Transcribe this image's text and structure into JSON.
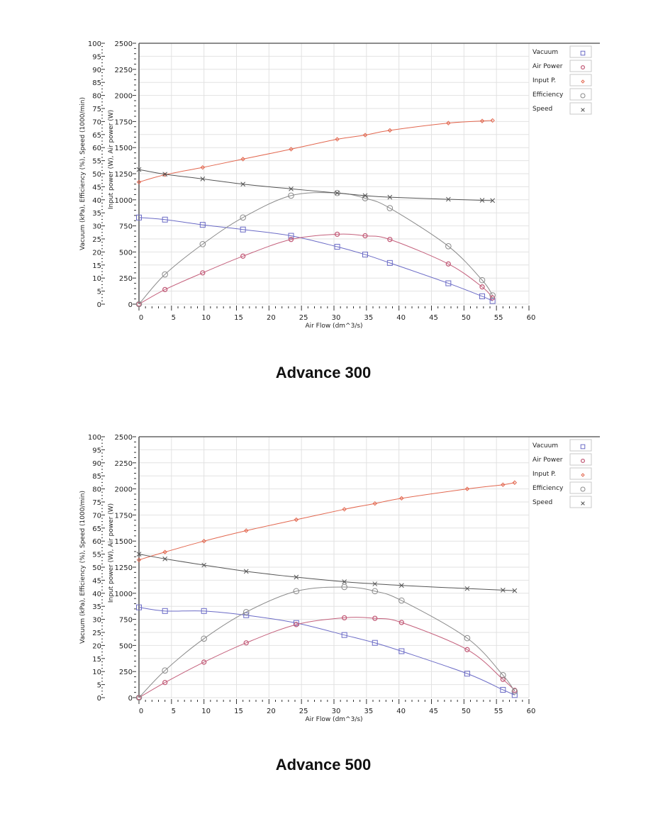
{
  "charts_meta": {
    "titles": [
      "Advance 300",
      "Advance 500"
    ]
  },
  "chart_data": [
    {
      "type": "line",
      "title": "Advance 300",
      "xlabel": "Air Flow  (dm^3/s)",
      "ylabel_left": "Vacuum (kPa), Efficiency (%), Speed (1000/min)",
      "ylabel_right": "Input power (W), Air power (W)",
      "xlim": [
        0,
        60
      ],
      "ylim_left": [
        0,
        100
      ],
      "ylim_right": [
        0,
        2500
      ],
      "x_ticks": [
        "0",
        "5",
        "10",
        "15",
        "20",
        "25",
        "30",
        "35",
        "40",
        "45",
        "50",
        "55",
        "60"
      ],
      "y_left_ticks": [
        "0",
        "5",
        "10",
        "15",
        "20",
        "25",
        "30",
        "35",
        "40",
        "45",
        "50",
        "55",
        "60",
        "65",
        "70",
        "75",
        "80",
        "85",
        "90",
        "95",
        "100"
      ],
      "y_right_ticks": [
        "0",
        "250",
        "500",
        "750",
        "1000",
        "1250",
        "1500",
        "1750",
        "2000",
        "2250",
        "2500"
      ],
      "grid": true,
      "legend_position": "top-right",
      "x": [
        0,
        4,
        9.8,
        16,
        23.4,
        30.5,
        34.8,
        38.6,
        47.6,
        52.8,
        54.4
      ],
      "series": [
        {
          "name": "Vacuum",
          "axis": "left",
          "marker": "square",
          "color": "#6b6bc6",
          "values": [
            33.2,
            32.4,
            30.4,
            28.6,
            26.2,
            22,
            19,
            15.8,
            8,
            3,
            1.2
          ]
        },
        {
          "name": "Air Power",
          "axis": "right",
          "marker": "circle-small",
          "color": "#c4607c",
          "values": [
            0,
            140,
            300,
            460,
            620,
            670,
            655,
            620,
            385,
            165,
            60
          ]
        },
        {
          "name": "Input P.",
          "axis": "right",
          "marker": "diamond",
          "color": "#e2674f",
          "values": [
            1170,
            1240,
            1310,
            1390,
            1485,
            1580,
            1620,
            1665,
            1735,
            1755,
            1760
          ]
        },
        {
          "name": "Efficiency",
          "axis": "left",
          "marker": "circle",
          "color": "#8a8a8a",
          "values": [
            0,
            11.4,
            23,
            33.2,
            41.6,
            42.6,
            40.6,
            36.8,
            22.2,
            9.2,
            3.4
          ]
        },
        {
          "name": "Speed",
          "axis": "left",
          "marker": "cross",
          "color": "#555555",
          "values": [
            51.6,
            49.8,
            48,
            46,
            44.2,
            42.6,
            41.6,
            41,
            40.2,
            39.8,
            39.7
          ]
        }
      ]
    },
    {
      "type": "line",
      "title": "Advance 500",
      "xlabel": "Air Flow  (dm^3/s)",
      "ylabel_left": "Vacuum (kPa), Efficiency (%), Speed (1000/min)",
      "ylabel_right": "Input power (W), Air power (W)",
      "xlim": [
        0,
        60
      ],
      "ylim_left": [
        0,
        100
      ],
      "ylim_right": [
        0,
        2500
      ],
      "x_ticks": [
        "0",
        "5",
        "10",
        "15",
        "20",
        "25",
        "30",
        "35",
        "40",
        "45",
        "50",
        "55",
        "60"
      ],
      "y_left_ticks": [
        "0",
        "5",
        "10",
        "15",
        "20",
        "25",
        "30",
        "35",
        "40",
        "45",
        "50",
        "55",
        "60",
        "65",
        "70",
        "75",
        "80",
        "85",
        "90",
        "95",
        "100"
      ],
      "y_right_ticks": [
        "0",
        "250",
        "500",
        "750",
        "1000",
        "1250",
        "1500",
        "1750",
        "2000",
        "2250",
        "2500"
      ],
      "grid": true,
      "legend_position": "top-right",
      "x": [
        0,
        4,
        10,
        16.5,
        24.2,
        31.6,
        36.3,
        40.4,
        50.5,
        56,
        57.8
      ],
      "series": [
        {
          "name": "Vacuum",
          "axis": "left",
          "marker": "square",
          "color": "#6b6bc6",
          "values": [
            34.6,
            33.2,
            33.2,
            31.6,
            28.6,
            24,
            21,
            17.8,
            9.2,
            3,
            1
          ]
        },
        {
          "name": "Air Power",
          "axis": "right",
          "marker": "circle-small",
          "color": "#c4607c",
          "values": [
            0,
            145,
            340,
            525,
            700,
            765,
            760,
            720,
            460,
            175,
            70
          ]
        },
        {
          "name": "Input P.",
          "axis": "right",
          "marker": "diamond",
          "color": "#e2674f",
          "values": [
            1320,
            1395,
            1500,
            1600,
            1705,
            1805,
            1860,
            1910,
            2000,
            2040,
            2060
          ]
        },
        {
          "name": "Efficiency",
          "axis": "left",
          "marker": "circle",
          "color": "#8a8a8a",
          "values": [
            0,
            10.4,
            22.6,
            32.8,
            40.8,
            42.4,
            40.8,
            37.2,
            22.8,
            8.6,
            2.4
          ]
        },
        {
          "name": "Speed",
          "axis": "left",
          "marker": "cross",
          "color": "#555555",
          "values": [
            55,
            53.2,
            50.8,
            48.4,
            46.2,
            44.4,
            43.6,
            43,
            41.8,
            41.2,
            41
          ]
        }
      ]
    }
  ]
}
